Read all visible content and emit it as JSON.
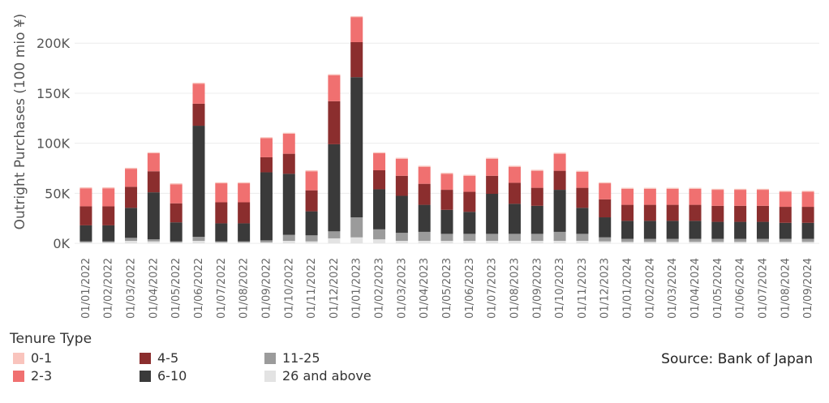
{
  "chart_data": {
    "type": "bar",
    "stacked": true,
    "ylabel": "Outright Purchases (100 mio ¥)",
    "xlabel": "",
    "ylim": [
      -8000,
      235000
    ],
    "yticks": [
      0,
      50000,
      100000,
      150000,
      200000
    ],
    "ytick_labels": [
      "0K",
      "50K",
      "100K",
      "150K",
      "200K"
    ],
    "grid": true,
    "categories": [
      "01/01/2022",
      "01/02/2022",
      "01/03/2022",
      "01/04/2022",
      "01/05/2022",
      "01/06/2022",
      "01/07/2022",
      "01/08/2022",
      "01/09/2022",
      "01/10/2022",
      "01/11/2022",
      "01/12/2022",
      "01/01/2023",
      "01/02/2023",
      "01/03/2023",
      "01/04/2023",
      "01/05/2023",
      "01/06/2023",
      "01/07/2023",
      "01/08/2023",
      "01/09/2023",
      "01/10/2023",
      "01/11/2023",
      "01/12/2023",
      "01/01/2024",
      "01/02/2024",
      "01/03/2024",
      "01/04/2024",
      "01/05/2024",
      "01/06/2024",
      "01/07/2024",
      "01/08/2024",
      "01/09/2024"
    ],
    "series": [
      {
        "name": "26 and above",
        "color": "#e3e3e3",
        "values": [
          1000,
          1000,
          2500,
          2000,
          1000,
          2500,
          1000,
          1000,
          1000,
          2500,
          2000,
          5000,
          6000,
          4000,
          2500,
          2500,
          2500,
          2500,
          2500,
          2500,
          2500,
          2500,
          2500,
          2000,
          1500,
          1500,
          1500,
          1500,
          1500,
          1500,
          1500,
          1500,
          1500
        ]
      },
      {
        "name": "11-25",
        "color": "#9b9b9b",
        "values": [
          1000,
          1000,
          3000,
          2000,
          1000,
          4000,
          1000,
          1000,
          2000,
          6000,
          6000,
          7000,
          20000,
          10000,
          8000,
          9000,
          7000,
          7000,
          7000,
          7000,
          7000,
          9000,
          7000,
          4000,
          3000,
          3000,
          3000,
          3000,
          3000,
          3000,
          3000,
          3000,
          3000
        ]
      },
      {
        "name": "6-10",
        "color": "#3a3a3a",
        "values": [
          16000,
          16000,
          30000,
          47000,
          19000,
          111000,
          18000,
          18000,
          68000,
          61000,
          24000,
          87000,
          140000,
          40000,
          37000,
          27000,
          24000,
          22000,
          40000,
          30000,
          28000,
          42000,
          26000,
          20000,
          18000,
          18000,
          18000,
          18000,
          17000,
          17000,
          17000,
          16000,
          16000
        ]
      },
      {
        "name": "4-5",
        "color": "#8b2e2e",
        "values": [
          19000,
          19000,
          21000,
          21000,
          19000,
          22000,
          21000,
          21000,
          15000,
          20000,
          21000,
          43000,
          35000,
          19000,
          20000,
          21000,
          20000,
          20000,
          18000,
          21000,
          18000,
          19000,
          20000,
          18000,
          16000,
          16000,
          16000,
          16000,
          16000,
          16000,
          16000,
          16000,
          16000
        ]
      },
      {
        "name": "2-3",
        "color": "#f07070",
        "values": [
          18000,
          18000,
          18000,
          18000,
          19000,
          20000,
          19000,
          19000,
          19000,
          20000,
          19000,
          26000,
          25000,
          17000,
          17000,
          17000,
          16000,
          16000,
          17000,
          16000,
          17000,
          17000,
          16000,
          16000,
          16000,
          16000,
          16000,
          16000,
          16000,
          16000,
          16000,
          15000,
          15000
        ]
      },
      {
        "name": "0-1",
        "color": "#f9c4bd",
        "values": [
          1000,
          1000,
          1000,
          1000,
          1000,
          1000,
          1000,
          1000,
          1000,
          1000,
          1000,
          1000,
          1000,
          1000,
          1000,
          1000,
          1000,
          1000,
          1000,
          1000,
          1000,
          1000,
          1000,
          1000,
          1000,
          1000,
          1000,
          1000,
          1000,
          1000,
          1000,
          1000,
          1000
        ]
      }
    ],
    "legend": {
      "title": "Tenure Type",
      "position": "bottom-left"
    },
    "source": "Source: Bank of Japan"
  }
}
